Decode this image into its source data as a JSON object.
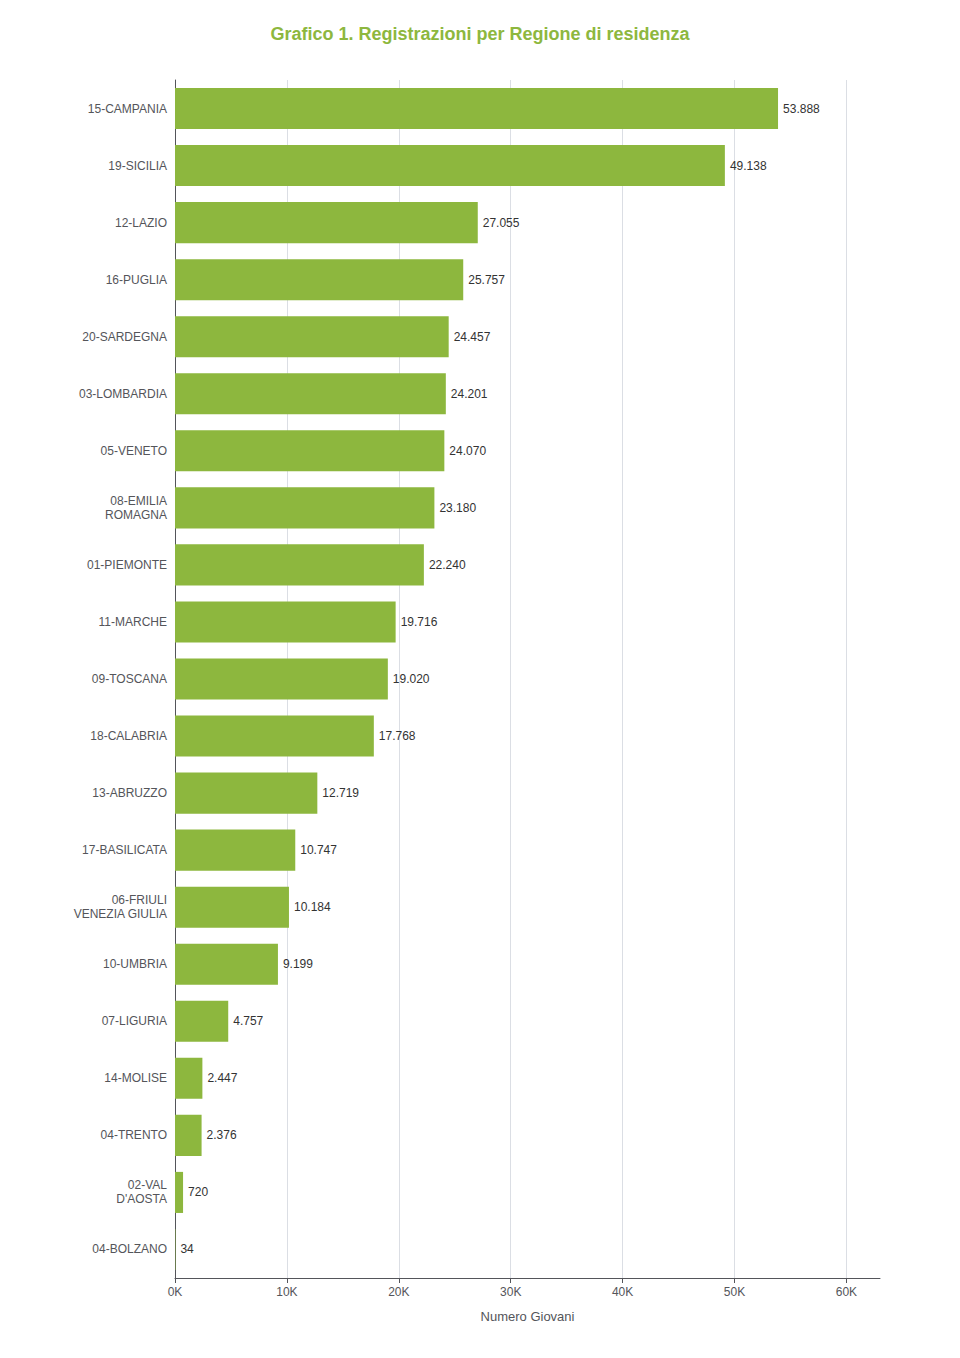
{
  "chart_data": {
    "type": "bar",
    "orientation": "horizontal",
    "title": "Grafico 1. Registrazioni per Regione di residenza",
    "xlabel": "Numero Giovani",
    "categories": [
      "15-CAMPANIA",
      "19-SICILIA",
      "12-LAZIO",
      "16-PUGLIA",
      "20-SARDEGNA",
      "03-LOMBARDIA",
      "05-VENETO",
      "08-EMILIA\nROMAGNA",
      "01-PIEMONTE",
      "11-MARCHE",
      "09-TOSCANA",
      "18-CALABRIA",
      "13-ABRUZZO",
      "17-BASILICATA",
      "06-FRIULI\nVENEZIA GIULIA",
      "10-UMBRIA",
      "07-LIGURIA",
      "14-MOLISE",
      "04-TRENTO",
      "02-VAL\nD'AOSTA",
      "04-BOLZANO"
    ],
    "values": [
      53888,
      49138,
      27055,
      25757,
      24457,
      24201,
      24070,
      23180,
      22240,
      19716,
      19020,
      17768,
      12719,
      10747,
      10184,
      9199,
      4757,
      2447,
      2376,
      720,
      34
    ],
    "value_labels": [
      "53.888",
      "49.138",
      "27.055",
      "25.757",
      "24.457",
      "24.201",
      "24.070",
      "23.180",
      "22.240",
      "19.716",
      "19.020",
      "17.768",
      "12.719",
      "10.747",
      "10.184",
      "9.199",
      "4.757",
      "2.447",
      "2.376",
      "720",
      "34"
    ],
    "color": "#8DB73E",
    "xlim": [
      0,
      63000
    ],
    "xticks": [
      {
        "value": 0,
        "label": "0K"
      },
      {
        "value": 10000,
        "label": "10K"
      },
      {
        "value": 20000,
        "label": "20K"
      },
      {
        "value": 30000,
        "label": "30K"
      },
      {
        "value": 40000,
        "label": "40K"
      },
      {
        "value": 50000,
        "label": "50K"
      },
      {
        "value": 60000,
        "label": "60K"
      }
    ],
    "grid": true,
    "data_labels": true
  }
}
